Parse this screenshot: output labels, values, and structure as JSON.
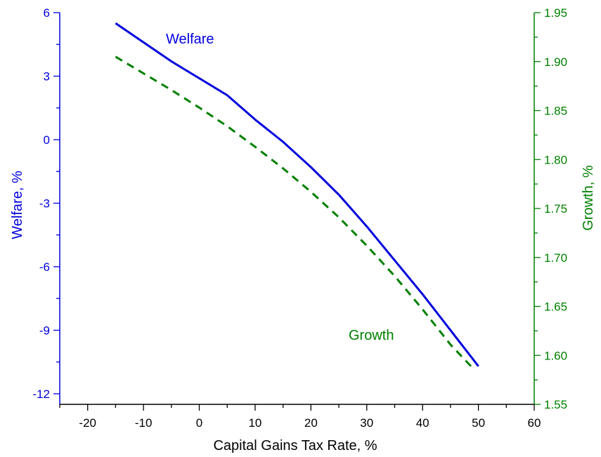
{
  "chart_data": {
    "type": "line",
    "title": "",
    "xlabel": "Capital Gains Tax Rate, %",
    "ylabel_left": "Welfare, %",
    "ylabel_right": "Growth, %",
    "xlim": [
      -25,
      60
    ],
    "ylim_left": [
      -12.5,
      6
    ],
    "ylim_right": [
      1.55,
      1.95
    ],
    "x_ticks": [
      -20,
      -10,
      0,
      10,
      20,
      30,
      40,
      50,
      60
    ],
    "x_tick_labels": [
      "-20",
      "-10",
      "0",
      "10",
      "20",
      "30",
      "40",
      "50",
      "60"
    ],
    "y_left_ticks": [
      -12,
      -9,
      -6,
      -3,
      0,
      3,
      6
    ],
    "y_left_tick_labels": [
      "-12",
      "-9",
      "-6",
      "-3",
      "0",
      "3",
      "6"
    ],
    "y_right_ticks": [
      1.55,
      1.6,
      1.65,
      1.7,
      1.75,
      1.8,
      1.85,
      1.9,
      1.95
    ],
    "y_right_tick_labels": [
      "1.55",
      "1.60",
      "1.65",
      "1.70",
      "1.75",
      "1.80",
      "1.85",
      "1.90",
      "1.95"
    ],
    "grid": false,
    "colors": {
      "welfare": "#0000dd",
      "growth": "#008000",
      "axis_x": "#000000"
    },
    "series": [
      {
        "name": "Welfare",
        "axis": "left",
        "style": "solid",
        "x": [
          -15,
          -10,
          -5,
          0,
          5,
          10,
          15,
          20,
          25,
          30,
          35,
          40,
          45,
          50
        ],
        "y": [
          5.5,
          4.6,
          3.7,
          2.9,
          2.1,
          0.95,
          -0.1,
          -1.3,
          -2.6,
          -4.1,
          -5.7,
          -7.3,
          -9.0,
          -10.7
        ]
      },
      {
        "name": "Growth",
        "axis": "right",
        "style": "dashed",
        "x": [
          -15,
          -10,
          -5,
          0,
          5,
          10,
          15,
          20,
          25,
          30,
          35,
          40,
          45,
          49
        ],
        "y": [
          1.905,
          1.888,
          1.871,
          1.853,
          1.834,
          1.813,
          1.791,
          1.767,
          1.741,
          1.712,
          1.681,
          1.647,
          1.611,
          1.587
        ]
      }
    ],
    "annotations": [
      {
        "text": "Welfare",
        "series": "Welfare"
      },
      {
        "text": "Growth",
        "series": "Growth"
      }
    ]
  }
}
